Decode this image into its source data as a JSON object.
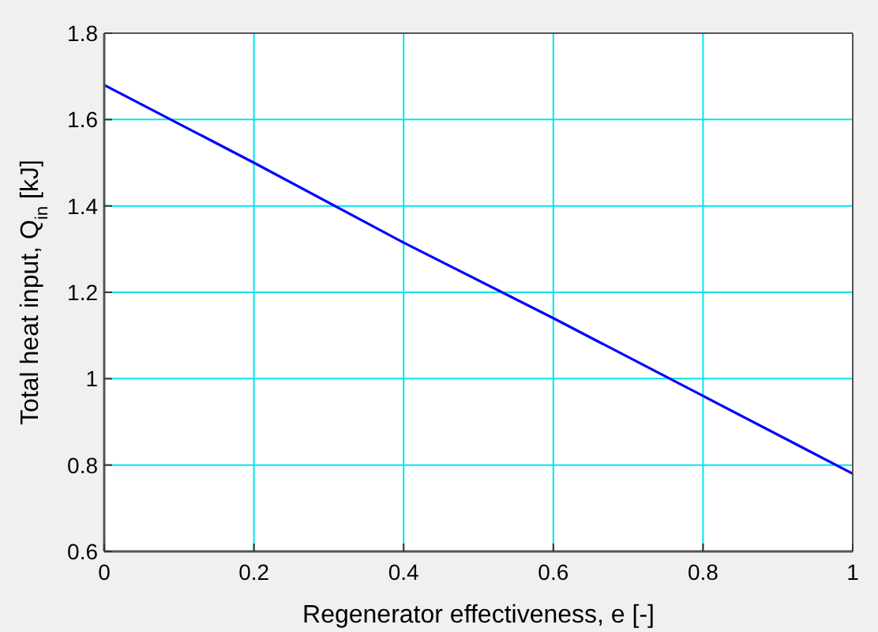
{
  "chart_data": {
    "type": "line",
    "xlabel": "Regenerator effectiveness, e  [-]",
    "ylabel": "Total heat input, Q$_{in}$  [kJ]",
    "x": [
      0,
      0.2,
      0.4,
      0.6,
      0.8,
      1
    ],
    "series": [
      {
        "color": "#0000ff",
        "values": [
          1.68,
          1.5,
          1.315,
          1.14,
          0.96,
          0.78
        ]
      }
    ],
    "xlim": [
      0,
      1
    ],
    "xticks": [
      0,
      0.2,
      0.4,
      0.6,
      0.8,
      1
    ],
    "ylim": [
      0.6,
      1.8
    ],
    "yticks": [
      0.6,
      0.8,
      1,
      1.2,
      1.4,
      1.6,
      1.8
    ],
    "grid": true
  }
}
